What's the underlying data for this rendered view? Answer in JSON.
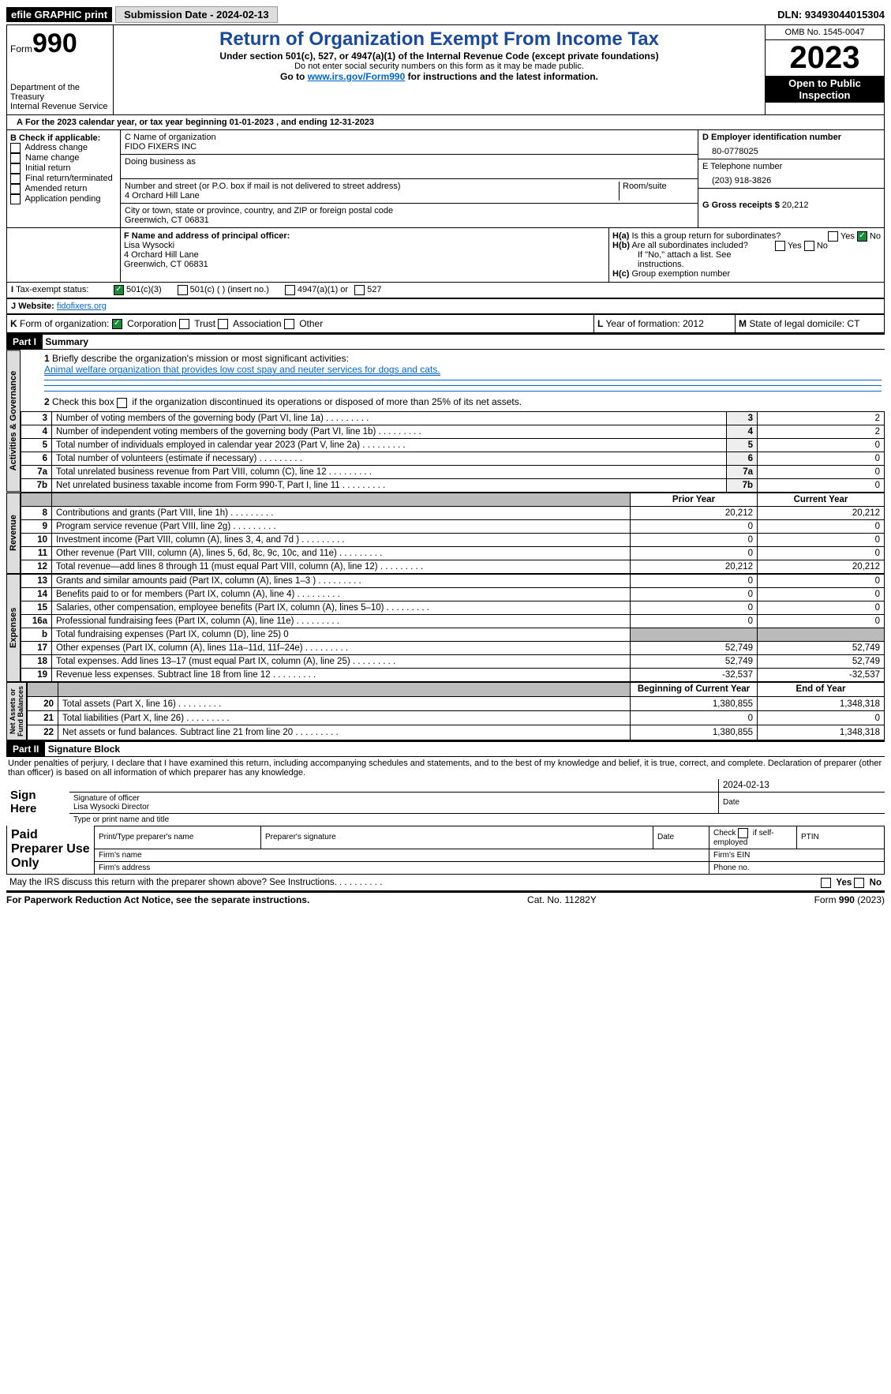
{
  "top": {
    "efile": "efile GRAPHIC print",
    "submission": "Submission Date - 2024-02-13",
    "dln": "DLN: 93493044015304"
  },
  "hdr": {
    "form": "990",
    "formword": "Form",
    "title": "Return of Organization Exempt From Income Tax",
    "sub1": "Under section 501(c), 527, or 4947(a)(1) of the Internal Revenue Code (except private foundations)",
    "sub2": "Do not enter social security numbers on this form as it may be made public.",
    "sub3_pre": "Go to ",
    "sub3_link": "www.irs.gov/Form990",
    "sub3_post": " for instructions and the latest information.",
    "dept": "Department of the Treasury\nInternal Revenue Service",
    "omb": "OMB No. 1545-0047",
    "year": "2023",
    "public": "Open to Public Inspection"
  },
  "A": {
    "text": "For the 2023 calendar year, or tax year beginning 01-01-2023    , and ending 12-31-2023"
  },
  "B": {
    "hdr": "B Check if applicable:",
    "items": [
      "Address change",
      "Name change",
      "Initial return",
      "Final return/terminated",
      "Amended return",
      "Application pending"
    ]
  },
  "C": {
    "name_lbl": "C Name of organization",
    "name": "FIDO FIXERS INC",
    "dba_lbl": "Doing business as",
    "dba": "",
    "addr_lbl": "Number and street (or P.O. box if mail is not delivered to street address)",
    "addr": "4 Orchard Hill Lane",
    "room_lbl": "Room/suite",
    "city_lbl": "City or town, state or province, country, and ZIP or foreign postal code",
    "city": "Greenwich, CT  06831"
  },
  "D": {
    "lbl": "D Employer identification number",
    "val": "80-0778025"
  },
  "E": {
    "lbl": "E Telephone number",
    "val": "(203) 918-3826"
  },
  "G": {
    "lbl": "G Gross receipts $",
    "val": "20,212"
  },
  "F": {
    "lbl": "F  Name and address of principal officer:",
    "name": "Lisa Wysocki",
    "addr1": "4 Orchard Hill Lane",
    "addr2": "Greenwich, CT  06831"
  },
  "H": {
    "a": "Is this a group return for subordinates?",
    "b": "Are all subordinates included?",
    "b2": "If \"No,\" attach a list. See instructions.",
    "c": "Group exemption number",
    "yes": "Yes",
    "no": "No"
  },
  "I": {
    "lbl": "Tax-exempt status:",
    "o1": "501(c)(3)",
    "o2": "501(c) (  ) (insert no.)",
    "o3": "4947(a)(1) or",
    "o4": "527"
  },
  "J": {
    "lbl": "Website:",
    "val": "fidofixers.org"
  },
  "K": {
    "lbl": "Form of organization:",
    "o1": "Corporation",
    "o2": "Trust",
    "o3": "Association",
    "o4": "Other"
  },
  "L": {
    "lbl": "Year of formation:",
    "val": "2012"
  },
  "M": {
    "lbl": "State of legal domicile:",
    "val": "CT"
  },
  "part1": {
    "hdr": "Part I",
    "title": "Summary",
    "l1": "Briefly describe the organization's mission or most significant activities:",
    "mission": "Animal welfare organization that provides low cost spay and neuter services for dogs and cats.",
    "l2": "Check this box        if the organization discontinued its operations or disposed of more than 25% of its net assets.",
    "rows_gov": [
      {
        "n": "3",
        "t": "Number of voting members of the governing body (Part VI, line 1a)",
        "v": "2"
      },
      {
        "n": "4",
        "t": "Number of independent voting members of the governing body (Part VI, line 1b)",
        "v": "2"
      },
      {
        "n": "5",
        "t": "Total number of individuals employed in calendar year 2023 (Part V, line 2a)",
        "v": "0"
      },
      {
        "n": "6",
        "t": "Total number of volunteers (estimate if necessary)",
        "v": "0"
      },
      {
        "n": "7a",
        "t": "Total unrelated business revenue from Part VIII, column (C), line 12",
        "v": "0"
      },
      {
        "n": "7b",
        "t": "Net unrelated business taxable income from Form 990-T, Part I, line 11",
        "v": "0",
        "nolabel": ""
      }
    ],
    "col_prior": "Prior Year",
    "col_curr": "Current Year",
    "rows_rev": [
      {
        "n": "8",
        "t": "Contributions and grants (Part VIII, line 1h)",
        "p": "20,212",
        "c": "20,212"
      },
      {
        "n": "9",
        "t": "Program service revenue (Part VIII, line 2g)",
        "p": "0",
        "c": "0"
      },
      {
        "n": "10",
        "t": "Investment income (Part VIII, column (A), lines 3, 4, and 7d )",
        "p": "0",
        "c": "0"
      },
      {
        "n": "11",
        "t": "Other revenue (Part VIII, column (A), lines 5, 6d, 8c, 9c, 10c, and 11e)",
        "p": "0",
        "c": "0"
      },
      {
        "n": "12",
        "t": "Total revenue—add lines 8 through 11 (must equal Part VIII, column (A), line 12)",
        "p": "20,212",
        "c": "20,212"
      }
    ],
    "rows_exp": [
      {
        "n": "13",
        "t": "Grants and similar amounts paid (Part IX, column (A), lines 1–3 )",
        "p": "0",
        "c": "0"
      },
      {
        "n": "14",
        "t": "Benefits paid to or for members (Part IX, column (A), line 4)",
        "p": "0",
        "c": "0"
      },
      {
        "n": "15",
        "t": "Salaries, other compensation, employee benefits (Part IX, column (A), lines 5–10)",
        "p": "0",
        "c": "0"
      },
      {
        "n": "16a",
        "t": "Professional fundraising fees (Part IX, column (A), line 11e)",
        "p": "0",
        "c": "0"
      },
      {
        "n": "b",
        "t": "Total fundraising expenses (Part IX, column (D), line 25) 0",
        "p": "",
        "c": "",
        "grey": true
      },
      {
        "n": "17",
        "t": "Other expenses (Part IX, column (A), lines 11a–11d, 11f–24e)",
        "p": "52,749",
        "c": "52,749"
      },
      {
        "n": "18",
        "t": "Total expenses. Add lines 13–17 (must equal Part IX, column (A), line 25)",
        "p": "52,749",
        "c": "52,749"
      },
      {
        "n": "19",
        "t": "Revenue less expenses. Subtract line 18 from line 12",
        "p": "-32,537",
        "c": "-32,537"
      }
    ],
    "col_beg": "Beginning of Current Year",
    "col_end": "End of Year",
    "rows_net": [
      {
        "n": "20",
        "t": "Total assets (Part X, line 16)",
        "p": "1,380,855",
        "c": "1,348,318"
      },
      {
        "n": "21",
        "t": "Total liabilities (Part X, line 26)",
        "p": "0",
        "c": "0"
      },
      {
        "n": "22",
        "t": "Net assets or fund balances. Subtract line 21 from line 20",
        "p": "1,380,855",
        "c": "1,348,318"
      }
    ]
  },
  "part2": {
    "hdr": "Part II",
    "title": "Signature Block",
    "decl": "Under penalties of perjury, I declare that I have examined this return, including accompanying schedules and statements, and to the best of my knowledge and belief, it is true, correct, and complete. Declaration of preparer (other than officer) is based on all information of which preparer has any knowledge.",
    "sign_here": "Sign Here",
    "sig_date": "2024-02-13",
    "sig_off": "Signature of officer",
    "sig_name": "Lisa Wysocki  Director",
    "sig_type": "Type or print name and title",
    "date": "Date",
    "paid": "Paid Preparer Use Only",
    "pp_name": "Print/Type preparer's name",
    "pp_sig": "Preparer's signature",
    "pp_ck": "Check        if self-employed",
    "ptin": "PTIN",
    "fname": "Firm's name",
    "fein": "Firm's EIN",
    "faddr": "Firm's address",
    "phone": "Phone no.",
    "irs": "May the IRS discuss this return with the preparer shown above? See Instructions."
  },
  "foot": {
    "l": "For Paperwork Reduction Act Notice, see the separate instructions.",
    "m": "Cat. No. 11282Y",
    "r": "Form 990 (2023)"
  }
}
